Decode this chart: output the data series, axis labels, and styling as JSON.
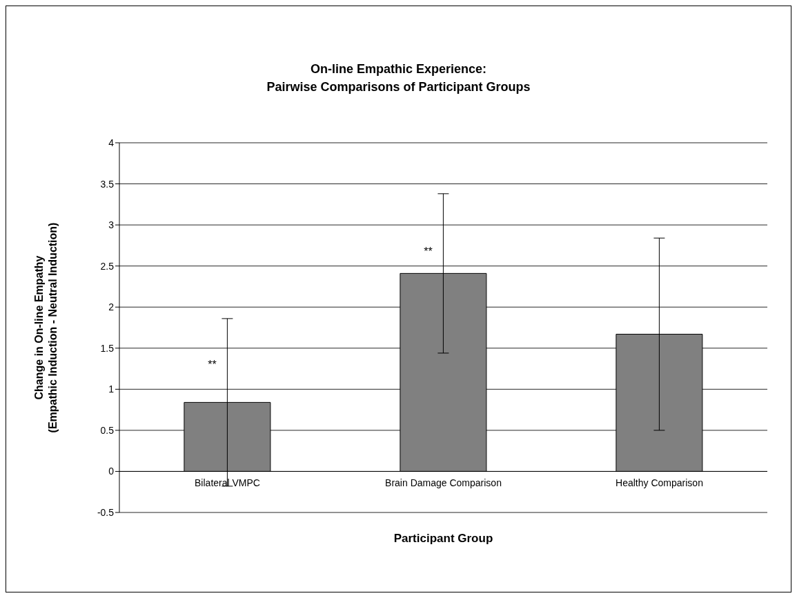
{
  "chart_data": {
    "type": "bar",
    "title": "On-line Empathic Experience:\nPairwise Comparisons of Participant Groups",
    "xlabel": "Participant Group",
    "ylabel": "Change in On-line Empathy\n(Empathic Induction - Neutral Induction)",
    "categories": [
      "Bilateral VMPC",
      "Brain Damage Comparison",
      "Healthy Comparison"
    ],
    "values": [
      0.84,
      2.41,
      1.67
    ],
    "errors": [
      1.02,
      0.97,
      1.17
    ],
    "color": "#808080",
    "ylim": [
      -0.5,
      4
    ],
    "yticks": [
      -0.5,
      0,
      0.5,
      1,
      1.5,
      2,
      2.5,
      3,
      3.5,
      4
    ],
    "grid": "y",
    "annotations": [
      {
        "text": "**",
        "x": "Bilateral VMPC",
        "y": 1.3
      },
      {
        "text": "**",
        "x": "Brain Damage Comparison",
        "y": 2.68
      }
    ]
  }
}
